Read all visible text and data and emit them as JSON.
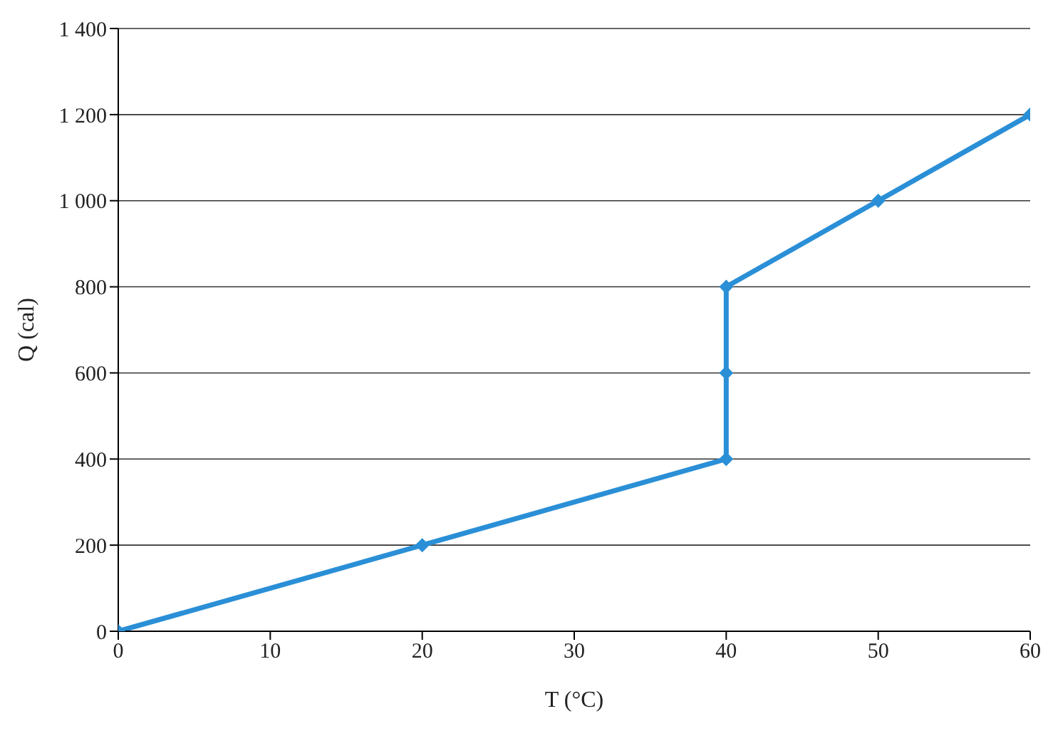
{
  "chart_data": {
    "type": "line",
    "xlabel": "T (°C)",
    "ylabel": "Q (cal)",
    "x": [
      0,
      20,
      40,
      40,
      40,
      50,
      60
    ],
    "series": [
      {
        "color": "#2a8fd6",
        "values": [
          0,
          200,
          400,
          600,
          800,
          1000,
          1200
        ]
      }
    ],
    "xlim": [
      0,
      60
    ],
    "xticks": [
      0,
      10,
      20,
      30,
      40,
      50,
      60
    ],
    "ylim": [
      0,
      1400
    ],
    "yticks": [
      0,
      200,
      400,
      600,
      800,
      {
        "value": 1000,
        "label": "1 000"
      },
      {
        "value": 1200,
        "label": "1 200"
      },
      {
        "value": 1400,
        "label": "1 400"
      }
    ],
    "grid": "y",
    "marker": "diamond",
    "line_style": "solid"
  }
}
